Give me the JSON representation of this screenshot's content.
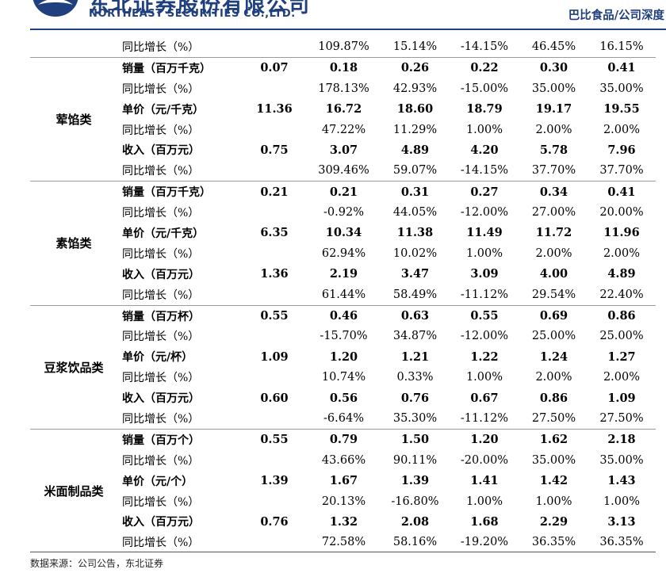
{
  "header": {
    "company_cn": "东北证券股份有限公司",
    "company_en": "NORTHEAST SECURITIES CO.,LTD.",
    "report_tag": "巴比食品/公司深度",
    "brand_color": "#1f3f7e"
  },
  "table": {
    "top_row": {
      "metric": "同比增长（%）",
      "values": [
        "",
        "109.87%",
        "15.14%",
        "-14.15%",
        "46.45%",
        "16.15%"
      ]
    },
    "groups": [
      {
        "category": "荤馅类",
        "rows": [
          {
            "metric": "销量（百万千克）",
            "bold": true,
            "values": [
              "0.07",
              "0.18",
              "0.26",
              "0.22",
              "0.30",
              "0.41"
            ]
          },
          {
            "metric": "同比增长（%）",
            "bold": false,
            "values": [
              "",
              "178.13%",
              "42.93%",
              "-15.00%",
              "35.00%",
              "35.00%"
            ]
          },
          {
            "metric": "单价（元/千克）",
            "bold": true,
            "values": [
              "11.36",
              "16.72",
              "18.60",
              "18.79",
              "19.17",
              "19.55"
            ]
          },
          {
            "metric": "同比增长（%）",
            "bold": false,
            "values": [
              "",
              "47.22%",
              "11.29%",
              "1.00%",
              "2.00%",
              "2.00%"
            ]
          },
          {
            "metric": "收入（百万元）",
            "bold": true,
            "values": [
              "0.75",
              "3.07",
              "4.89",
              "4.20",
              "5.78",
              "7.96"
            ]
          },
          {
            "metric": "同比增长（%）",
            "bold": false,
            "values": [
              "",
              "309.46%",
              "59.07%",
              "-14.15%",
              "37.70%",
              "37.70%"
            ]
          }
        ]
      },
      {
        "category": "素馅类",
        "rows": [
          {
            "metric": "销量（百万千克）",
            "bold": true,
            "values": [
              "0.21",
              "0.21",
              "0.31",
              "0.27",
              "0.34",
              "0.41"
            ]
          },
          {
            "metric": "同比增长（%）",
            "bold": false,
            "values": [
              "",
              "-0.92%",
              "44.05%",
              "-12.00%",
              "27.00%",
              "20.00%"
            ]
          },
          {
            "metric": "单价（元/千克）",
            "bold": true,
            "values": [
              "6.35",
              "10.34",
              "11.38",
              "11.49",
              "11.72",
              "11.96"
            ]
          },
          {
            "metric": "同比增长（%）",
            "bold": false,
            "values": [
              "",
              "62.94%",
              "10.02%",
              "1.00%",
              "2.00%",
              "2.00%"
            ]
          },
          {
            "metric": "收入（百万元）",
            "bold": true,
            "values": [
              "1.36",
              "2.19",
              "3.47",
              "3.09",
              "4.00",
              "4.89"
            ]
          },
          {
            "metric": "同比增长（%）",
            "bold": false,
            "values": [
              "",
              "61.44%",
              "58.49%",
              "-11.12%",
              "29.54%",
              "22.40%"
            ]
          }
        ]
      },
      {
        "category": "豆浆饮品类",
        "rows": [
          {
            "metric": "销量（百万杯）",
            "bold": true,
            "values": [
              "0.55",
              "0.46",
              "0.63",
              "0.55",
              "0.69",
              "0.86"
            ]
          },
          {
            "metric": "同比增长（%）",
            "bold": false,
            "values": [
              "",
              "-15.70%",
              "34.87%",
              "-12.00%",
              "25.00%",
              "25.00%"
            ]
          },
          {
            "metric": "单价（元/杯）",
            "bold": true,
            "values": [
              "1.09",
              "1.20",
              "1.21",
              "1.22",
              "1.24",
              "1.27"
            ]
          },
          {
            "metric": "同比增长（%）",
            "bold": false,
            "values": [
              "",
              "10.74%",
              "0.33%",
              "1.00%",
              "2.00%",
              "2.00%"
            ]
          },
          {
            "metric": "收入（百万元）",
            "bold": true,
            "values": [
              "0.60",
              "0.56",
              "0.76",
              "0.67",
              "0.86",
              "1.09"
            ]
          },
          {
            "metric": "同比增长（%）",
            "bold": false,
            "values": [
              "",
              "-6.64%",
              "35.30%",
              "-11.12%",
              "27.50%",
              "27.50%"
            ]
          }
        ]
      },
      {
        "category": "米面制品类",
        "rows": [
          {
            "metric": "销量（百万个）",
            "bold": true,
            "values": [
              "0.55",
              "0.79",
              "1.50",
              "1.20",
              "1.62",
              "2.18"
            ]
          },
          {
            "metric": "同比增长（%）",
            "bold": false,
            "values": [
              "",
              "43.66%",
              "90.11%",
              "-20.00%",
              "35.00%",
              "35.00%"
            ]
          },
          {
            "metric": "单价（元/个）",
            "bold": true,
            "values": [
              "1.39",
              "1.67",
              "1.39",
              "1.41",
              "1.42",
              "1.43"
            ]
          },
          {
            "metric": "同比增长（%）",
            "bold": false,
            "values": [
              "",
              "20.13%",
              "-16.80%",
              "1.00%",
              "1.00%",
              "1.00%"
            ]
          },
          {
            "metric": "收入（百万元）",
            "bold": true,
            "values": [
              "0.76",
              "1.32",
              "2.08",
              "1.68",
              "2.29",
              "3.13"
            ]
          },
          {
            "metric": "同比增长（%）",
            "bold": false,
            "values": [
              "",
              "72.58%",
              "58.16%",
              "-19.20%",
              "36.35%",
              "36.35%"
            ]
          }
        ]
      }
    ]
  },
  "footer": {
    "source": "数据来源：公司公告，东北证券"
  }
}
